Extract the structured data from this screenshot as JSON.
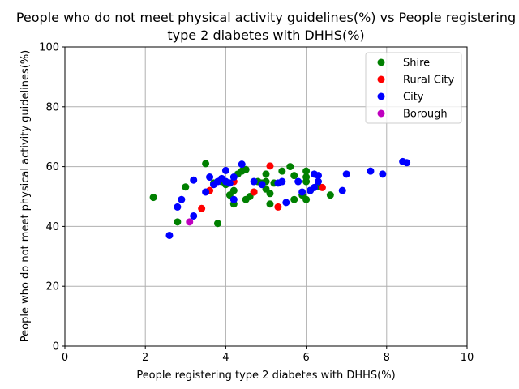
{
  "chart_data": {
    "type": "scatter",
    "title_lines": [
      "People who do not meet physical activity guidelines(%) vs People registering",
      "type 2 diabetes with DHHS(%)"
    ],
    "xlabel": "People registering type 2 diabetes with DHHS(%)",
    "ylabel": "People who do not meet physical activity guidelines(%)",
    "xlim": [
      0,
      10
    ],
    "ylim": [
      0,
      100
    ],
    "xticks": [
      "0",
      "2",
      "4",
      "6",
      "8",
      "10"
    ],
    "yticks": [
      "0",
      "20",
      "40",
      "60",
      "80",
      "100"
    ],
    "grid": true,
    "legend_position": "top-right",
    "series": [
      {
        "name": "Shire",
        "color": "#008000",
        "points": [
          [
            2.2,
            49.7
          ],
          [
            2.8,
            41.5
          ],
          [
            3.0,
            53.2
          ],
          [
            3.5,
            61.0
          ],
          [
            3.7,
            54.5
          ],
          [
            3.8,
            41.0
          ],
          [
            3.9,
            55.0
          ],
          [
            4.0,
            54.0
          ],
          [
            4.1,
            50.5
          ],
          [
            4.2,
            47.5
          ],
          [
            4.2,
            52.0
          ],
          [
            4.3,
            57.5
          ],
          [
            4.4,
            58.5
          ],
          [
            4.5,
            59.0
          ],
          [
            4.5,
            49.0
          ],
          [
            4.6,
            50.0
          ],
          [
            4.7,
            51.5
          ],
          [
            4.8,
            55.0
          ],
          [
            4.9,
            54.5
          ],
          [
            5.0,
            57.5
          ],
          [
            5.0,
            52.5
          ],
          [
            5.0,
            55.0
          ],
          [
            5.1,
            51.0
          ],
          [
            5.1,
            47.5
          ],
          [
            5.2,
            54.5
          ],
          [
            5.4,
            58.5
          ],
          [
            5.6,
            60.0
          ],
          [
            5.7,
            57.0
          ],
          [
            5.7,
            49.0
          ],
          [
            5.9,
            50.5
          ],
          [
            6.0,
            49.0
          ],
          [
            6.0,
            58.5
          ],
          [
            6.0,
            55.0
          ],
          [
            6.0,
            56.5
          ],
          [
            6.1,
            52.0
          ],
          [
            6.3,
            53.5
          ],
          [
            6.6,
            50.5
          ]
        ]
      },
      {
        "name": "Rural City",
        "color": "#ff0000",
        "points": [
          [
            3.4,
            46.0
          ],
          [
            3.6,
            52.0
          ],
          [
            4.2,
            55.0
          ],
          [
            4.7,
            51.5
          ],
          [
            5.1,
            60.2
          ],
          [
            5.3,
            46.5
          ],
          [
            6.4,
            53.0
          ]
        ]
      },
      {
        "name": "City",
        "color": "#0000ff",
        "points": [
          [
            2.6,
            37.0
          ],
          [
            2.8,
            46.5
          ],
          [
            2.9,
            49.0
          ],
          [
            3.2,
            43.5
          ],
          [
            3.2,
            55.5
          ],
          [
            3.5,
            51.5
          ],
          [
            3.6,
            56.5
          ],
          [
            3.7,
            54.0
          ],
          [
            3.8,
            55.0
          ],
          [
            3.9,
            56.0
          ],
          [
            4.0,
            58.7
          ],
          [
            4.0,
            55.0
          ],
          [
            4.1,
            54.5
          ],
          [
            4.2,
            56.5
          ],
          [
            4.2,
            49.0
          ],
          [
            4.4,
            60.8
          ],
          [
            4.7,
            55.0
          ],
          [
            4.9,
            54.0
          ],
          [
            5.3,
            54.5
          ],
          [
            5.4,
            55.0
          ],
          [
            5.5,
            48.0
          ],
          [
            5.8,
            55.0
          ],
          [
            5.9,
            51.5
          ],
          [
            6.1,
            52.0
          ],
          [
            6.2,
            57.5
          ],
          [
            6.2,
            53.0
          ],
          [
            6.3,
            57.0
          ],
          [
            6.3,
            55.0
          ],
          [
            6.9,
            52.0
          ],
          [
            7.0,
            57.5
          ],
          [
            7.6,
            58.5
          ],
          [
            7.9,
            57.5
          ],
          [
            8.4,
            61.7
          ],
          [
            8.5,
            61.3
          ]
        ]
      },
      {
        "name": "Borough",
        "color": "#bf00bf",
        "points": [
          [
            3.1,
            41.5
          ]
        ]
      }
    ]
  }
}
